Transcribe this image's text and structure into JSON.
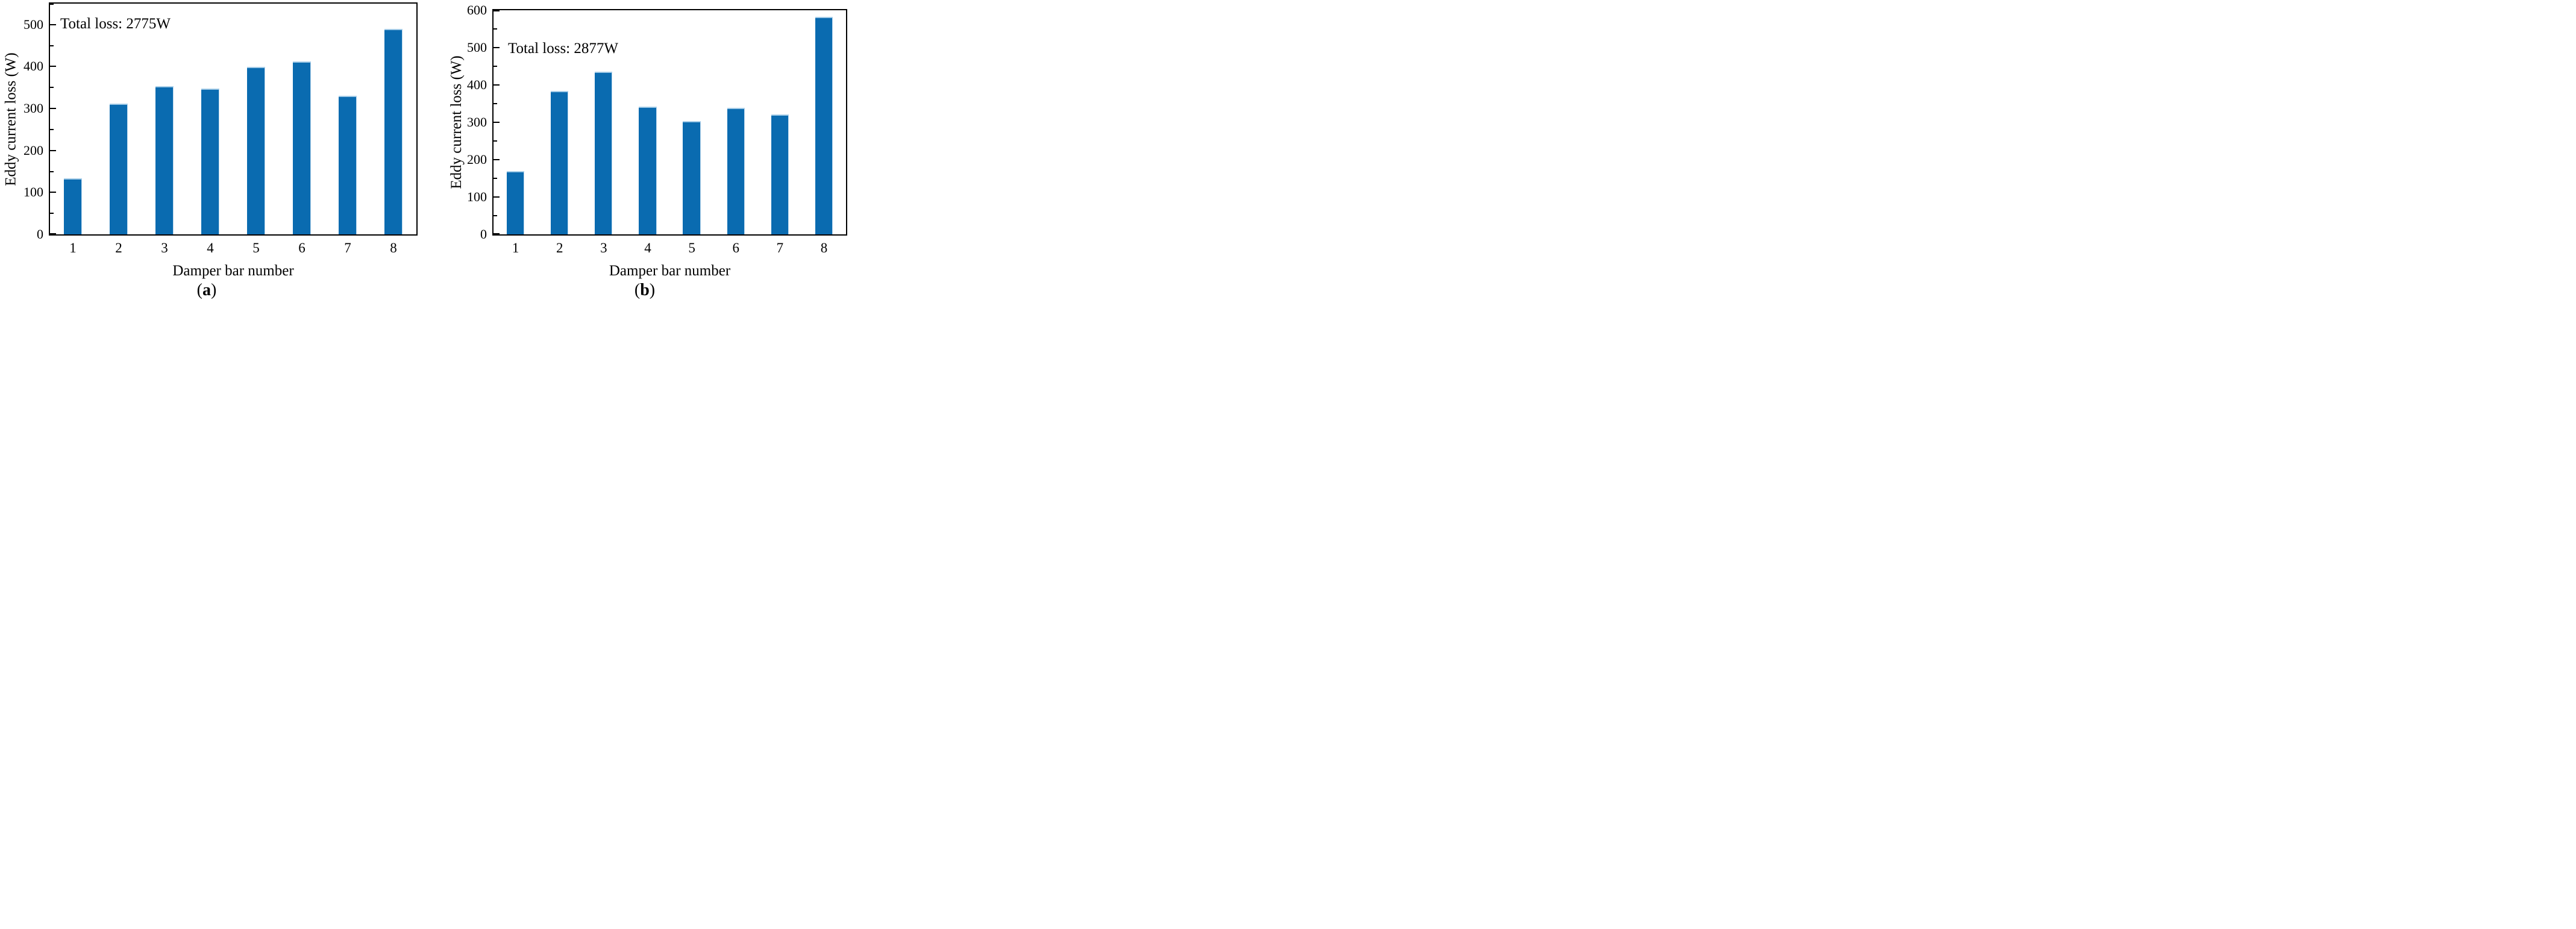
{
  "chart_data": [
    {
      "type": "bar",
      "panel_letter": "a",
      "annotation": "Total loss: 2775W",
      "xlabel": "Damper bar number",
      "ylabel": "Eddy current loss (W)",
      "categories": [
        "1",
        "2",
        "3",
        "4",
        "5",
        "6",
        "7",
        "8"
      ],
      "values": [
        133,
        311,
        353,
        347,
        399,
        412,
        330,
        490
      ],
      "total_loss_watts": 2775,
      "ylim": [
        0,
        550
      ],
      "yticks": [
        0,
        100,
        200,
        300,
        400,
        500
      ],
      "ytick_labels": [
        "0",
        "100",
        "200",
        "300",
        "400",
        "500"
      ],
      "minor_yticks": [
        50,
        150,
        250,
        350,
        450,
        550
      ],
      "grid": "off",
      "legend": "none",
      "bar_color": "#0a6bb0",
      "bar_edge_color": "#a6cde8"
    },
    {
      "type": "bar",
      "panel_letter": "b",
      "annotation": "Total loss: 2877W",
      "xlabel": "Damper bar number",
      "ylabel": "Eddy current loss (W)",
      "categories": [
        "1",
        "2",
        "3",
        "4",
        "5",
        "6",
        "7",
        "8"
      ],
      "values": [
        170,
        384,
        435,
        342,
        304,
        339,
        321,
        582
      ],
      "total_loss_watts": 2877,
      "ylim": [
        0,
        600
      ],
      "yticks": [
        0,
        100,
        200,
        300,
        400,
        500,
        600
      ],
      "ytick_labels": [
        "0",
        "100",
        "200",
        "300",
        "400",
        "500",
        "600"
      ],
      "minor_yticks": [
        50,
        150,
        250,
        350,
        450,
        550
      ],
      "grid": "off",
      "legend": "none",
      "bar_color": "#0a6bb0",
      "bar_edge_color": "#a6cde8"
    }
  ],
  "captions": {
    "a": {
      "open": "(",
      "letter": "a",
      "close": ")"
    },
    "b": {
      "open": "(",
      "letter": "b",
      "close": ")"
    }
  }
}
